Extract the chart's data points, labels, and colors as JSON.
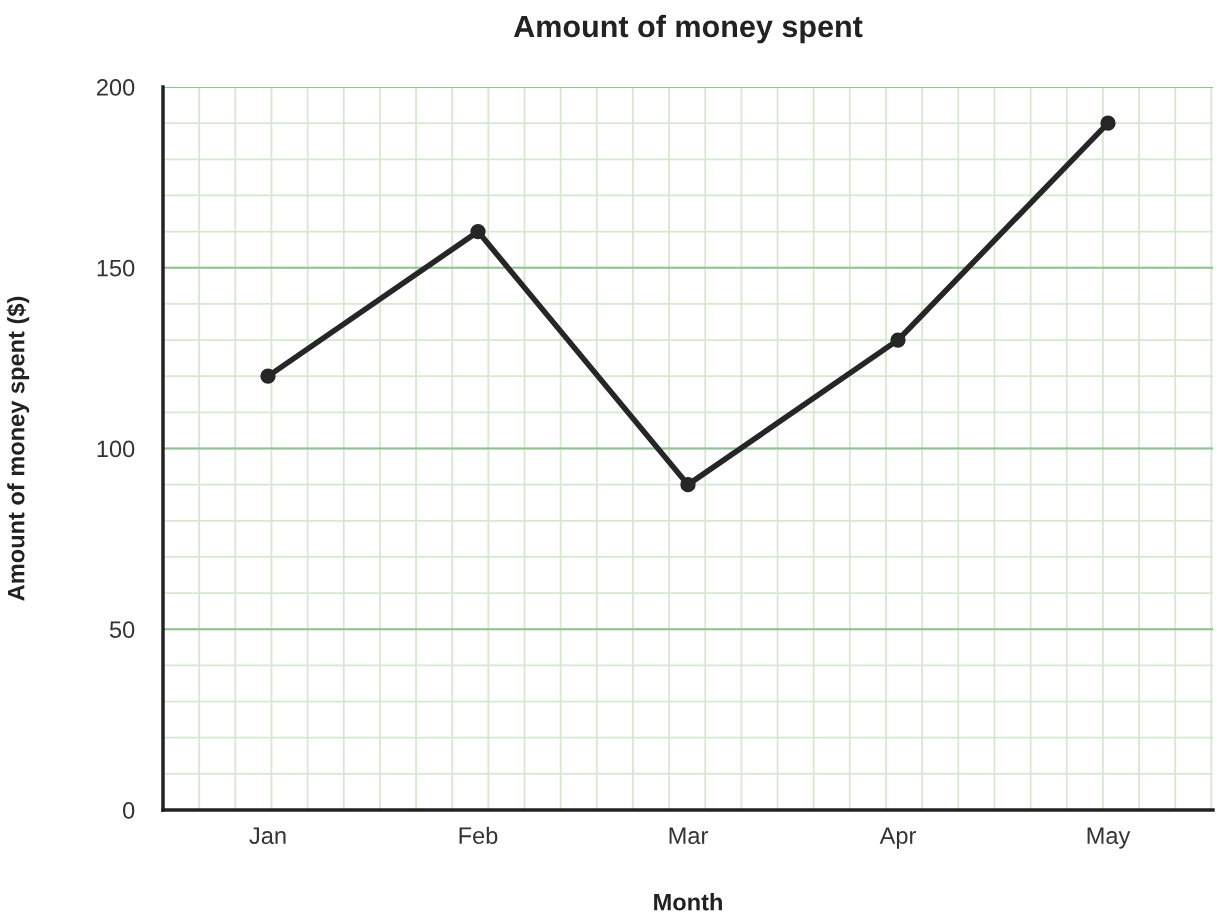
{
  "chart_data": {
    "type": "line",
    "title": "Amount of money spent",
    "xlabel": "Month",
    "ylabel": "Amount of money spent ($)",
    "categories": [
      "Jan",
      "Feb",
      "Mar",
      "Apr",
      "May"
    ],
    "series": [
      {
        "color": "#262626",
        "values": [
          120,
          160,
          90,
          130,
          190
        ]
      }
    ],
    "ylim": [
      0,
      200
    ],
    "yticks": [
      0,
      50,
      100,
      150,
      200
    ],
    "grid": true,
    "marker": "circle",
    "line_style": "solid",
    "legend": false
  }
}
